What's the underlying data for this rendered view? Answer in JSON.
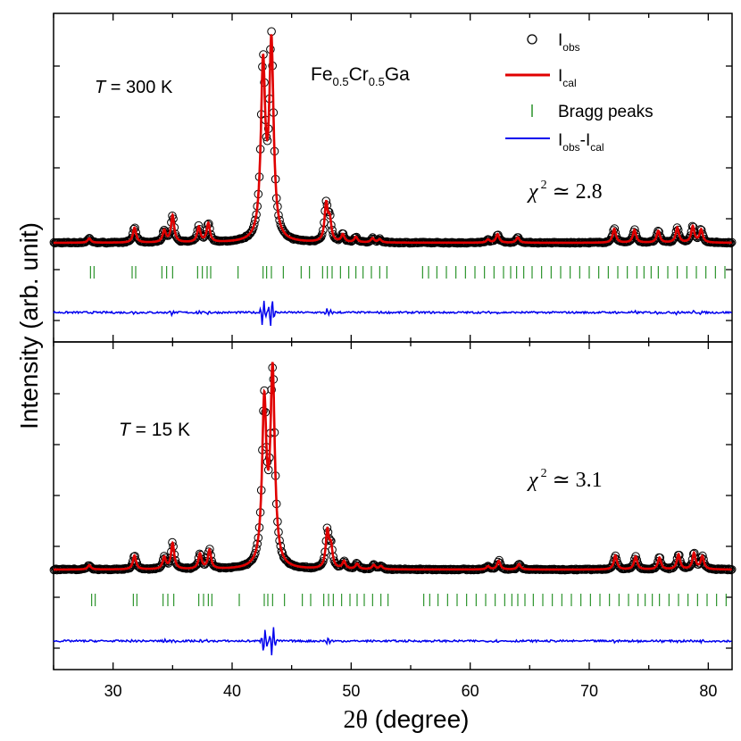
{
  "chart_data": {
    "type": "line",
    "ylabel": "Intensity (arb. unit)",
    "xlabel_symbol": "2θ",
    "xlabel_rest": " (degree)",
    "xlim": [
      25,
      82
    ],
    "x_ticks": [
      30,
      40,
      50,
      60,
      70,
      80
    ],
    "x_tick_labels": [
      "30",
      "40",
      "50",
      "60",
      "70",
      "80"
    ],
    "legend_position": "top-right of upper panel",
    "legend": {
      "obs_main": "I",
      "obs_sub": "obs",
      "cal_main": "I",
      "cal_sub": "cal",
      "bragg": "Bragg peaks",
      "diff_main1": "I",
      "diff_sub1": "obs",
      "diff_dash": "-",
      "diff_main2": "I",
      "diff_sub2": "cal"
    },
    "compound": {
      "p1": "Fe",
      "s1": "0.5",
      "p2": "Cr",
      "s2": "0.5",
      "p3": "Ga"
    },
    "colors": {
      "observed": "#000000",
      "calculated": "#e00000",
      "bragg": "#1a8a1a",
      "difference": "#0000ee"
    },
    "series_names": [
      "Iobs",
      "Ical",
      "Bragg peaks",
      "Iobs-Ical"
    ],
    "panels": [
      {
        "temperature_symbol": "T",
        "temperature_text": " = 300 K",
        "chi_symbol": "χ",
        "chi_sup": "2",
        "chi_text": " ≃ 2.8",
        "background": 11,
        "peaks": [
          [
            28.0,
            8
          ],
          [
            31.8,
            28
          ],
          [
            34.3,
            22
          ],
          [
            35.0,
            50
          ],
          [
            37.2,
            28
          ],
          [
            38.0,
            35
          ],
          [
            42.6,
            320
          ],
          [
            43.3,
            360
          ],
          [
            47.9,
            68
          ],
          [
            48.2,
            38
          ],
          [
            49.3,
            14
          ],
          [
            50.4,
            10
          ],
          [
            51.8,
            8
          ],
          [
            52.4,
            6
          ],
          [
            61.5,
            6
          ],
          [
            62.3,
            16
          ],
          [
            64.0,
            10
          ],
          [
            72.1,
            26
          ],
          [
            73.8,
            24
          ],
          [
            75.8,
            22
          ],
          [
            77.4,
            28
          ],
          [
            78.7,
            30
          ],
          [
            79.4,
            24
          ]
        ],
        "bragg_positions": [
          28.1,
          28.4,
          31.6,
          31.9,
          34.1,
          34.5,
          35.0,
          37.1,
          37.5,
          37.9,
          38.2,
          40.5,
          42.6,
          42.9,
          43.3,
          44.3,
          45.8,
          46.5,
          47.6,
          48.0,
          48.4,
          49.1,
          49.8,
          50.4,
          51.0,
          51.7,
          52.4,
          53.0,
          56.0,
          56.5,
          57.2,
          58.0,
          58.8,
          59.6,
          60.4,
          61.2,
          62.0,
          62.8,
          63.4,
          63.9,
          64.5,
          65.2,
          66.0,
          66.8,
          67.6,
          68.4,
          69.2,
          70.0,
          70.8,
          71.6,
          72.4,
          73.2,
          74.0,
          74.6,
          75.2,
          75.8,
          76.6,
          77.4,
          78.2,
          79.0,
          79.8,
          80.6,
          81.4
        ]
      },
      {
        "temperature_symbol": "T",
        "temperature_text": " = 15 K",
        "chi_symbol": "χ",
        "chi_sup": "2",
        "chi_text": " ≃ 3.1",
        "background": 11,
        "peaks": [
          [
            28.0,
            8
          ],
          [
            31.8,
            26
          ],
          [
            34.3,
            22
          ],
          [
            35.0,
            48
          ],
          [
            37.3,
            28
          ],
          [
            38.1,
            35
          ],
          [
            42.7,
            300
          ],
          [
            43.4,
            360
          ],
          [
            48.0,
            68
          ],
          [
            48.3,
            38
          ],
          [
            49.4,
            14
          ],
          [
            50.5,
            10
          ],
          [
            51.9,
            8
          ],
          [
            52.5,
            6
          ],
          [
            61.5,
            6
          ],
          [
            62.4,
            16
          ],
          [
            64.1,
            10
          ],
          [
            72.2,
            26
          ],
          [
            73.9,
            24
          ],
          [
            75.9,
            22
          ],
          [
            77.5,
            28
          ],
          [
            78.8,
            30
          ],
          [
            79.5,
            24
          ]
        ],
        "bragg_positions": [
          28.2,
          28.5,
          31.7,
          32.0,
          34.2,
          34.6,
          35.1,
          37.2,
          37.6,
          38.0,
          38.3,
          40.6,
          42.7,
          43.0,
          43.4,
          44.4,
          45.9,
          46.6,
          47.7,
          48.1,
          48.5,
          49.2,
          49.9,
          50.5,
          51.1,
          51.8,
          52.5,
          53.1,
          56.1,
          56.6,
          57.3,
          58.1,
          58.9,
          59.7,
          60.5,
          61.3,
          62.1,
          62.9,
          63.5,
          64.0,
          64.6,
          65.3,
          66.1,
          66.9,
          67.7,
          68.5,
          69.3,
          70.1,
          70.9,
          71.7,
          72.5,
          73.3,
          74.1,
          74.7,
          75.3,
          75.9,
          76.7,
          77.5,
          78.3,
          79.1,
          79.9,
          80.7,
          81.5
        ]
      }
    ]
  }
}
